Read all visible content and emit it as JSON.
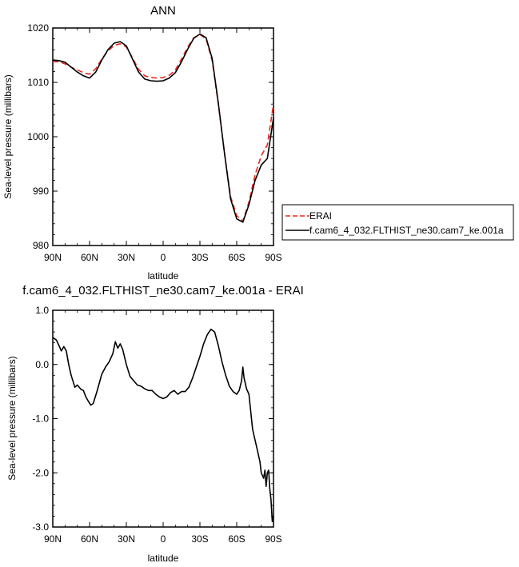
{
  "colors": {
    "model": "#000000",
    "obs": "#e8281e",
    "frame": "#000000"
  },
  "chart_data": [
    {
      "type": "line",
      "title": "ANN",
      "xlabel": "latitude",
      "ylabel": "Sea-level pressure (millibars)",
      "x_ticks": [
        {
          "value": 90,
          "label": "90N"
        },
        {
          "value": 60,
          "label": "60N"
        },
        {
          "value": 30,
          "label": "30N"
        },
        {
          "value": 0,
          "label": "0"
        },
        {
          "value": -30,
          "label": "30S"
        },
        {
          "value": -60,
          "label": "60S"
        },
        {
          "value": -90,
          "label": "90S"
        }
      ],
      "xlim": [
        90,
        -90
      ],
      "y_ticks": [
        {
          "value": 1020,
          "label": "1020"
        },
        {
          "value": 1010,
          "label": "1010"
        },
        {
          "value": 1000,
          "label": "1000"
        },
        {
          "value": 990,
          "label": "990"
        },
        {
          "value": 980,
          "label": "980"
        }
      ],
      "ylim": [
        980,
        1020
      ],
      "legend": {
        "placement": "right",
        "entries": [
          {
            "label": "ERAI",
            "series": 0
          },
          {
            "label": "f.cam6_4_032.FLTHIST_ne30.cam7_ke.001a",
            "series": 1
          }
        ]
      },
      "series": [
        {
          "name": "ERAI",
          "style": "dashed",
          "x": [
            90,
            85,
            80,
            75,
            70,
            65,
            60,
            55,
            50,
            45,
            40,
            35,
            30,
            25,
            20,
            15,
            10,
            5,
            0,
            -5,
            -10,
            -15,
            -20,
            -25,
            -30,
            -35,
            -40,
            -45,
            -50,
            -55,
            -60,
            -65,
            -70,
            -75,
            -80,
            -85,
            -90
          ],
          "values": [
            1013.8,
            1013.8,
            1013.4,
            1012.8,
            1012.3,
            1011.8,
            1011.5,
            1012.5,
            1014.3,
            1015.8,
            1016.8,
            1017.1,
            1016.5,
            1014.5,
            1012.4,
            1011.2,
            1010.9,
            1010.8,
            1010.9,
            1011.3,
            1012.3,
            1014.3,
            1016.5,
            1018.2,
            1018.8,
            1018.0,
            1014.0,
            1006.0,
            997.0,
            989.0,
            985.5,
            984.5,
            988.0,
            993.0,
            996.5,
            998.5,
            1006.0
          ]
        },
        {
          "name": "f.cam6_4_032.FLTHIST_ne30.cam7_ke.001a",
          "style": "solid",
          "x": [
            90,
            85,
            80,
            75,
            70,
            65,
            60,
            55,
            50,
            45,
            40,
            35,
            30,
            25,
            20,
            15,
            10,
            5,
            0,
            -5,
            -10,
            -15,
            -20,
            -25,
            -30,
            -35,
            -40,
            -45,
            -50,
            -55,
            -60,
            -65,
            -70,
            -75,
            -80,
            -85,
            -90
          ],
          "values": [
            1014.1,
            1014.0,
            1013.7,
            1012.8,
            1011.9,
            1011.2,
            1010.8,
            1011.9,
            1014.1,
            1016.0,
            1017.2,
            1017.5,
            1016.7,
            1014.3,
            1011.9,
            1010.6,
            1010.3,
            1010.2,
            1010.3,
            1010.8,
            1011.8,
            1013.8,
            1016.1,
            1018.1,
            1018.9,
            1018.2,
            1014.4,
            1006.2,
            997.0,
            988.6,
            984.9,
            984.3,
            987.5,
            992.0,
            994.8,
            996.0,
            1003.5
          ]
        }
      ]
    },
    {
      "type": "line",
      "title": "f.cam6_4_032.FLTHIST_ne30.cam7_ke.001a - ERAI",
      "xlabel": "latitude",
      "ylabel": "Sea-level pressure (millibars)",
      "x_ticks": [
        {
          "value": 90,
          "label": "90N"
        },
        {
          "value": 60,
          "label": "60N"
        },
        {
          "value": 30,
          "label": "30N"
        },
        {
          "value": 0,
          "label": "0"
        },
        {
          "value": -30,
          "label": "30S"
        },
        {
          "value": -60,
          "label": "60S"
        },
        {
          "value": -90,
          "label": "90S"
        }
      ],
      "xlim": [
        90,
        -90
      ],
      "y_ticks": [
        {
          "value": 1,
          "label": "1.0"
        },
        {
          "value": 0,
          "label": "0.0"
        },
        {
          "value": -1,
          "label": "-1.0"
        },
        {
          "value": -2,
          "label": "-2.0"
        },
        {
          "value": -3,
          "label": "-3.0"
        }
      ],
      "ylim": [
        -3,
        1
      ],
      "series": [
        {
          "style": "solid",
          "x": [
            90,
            87,
            85,
            83,
            81,
            79,
            77,
            75,
            72,
            70,
            67,
            65,
            63,
            61,
            59,
            57,
            54,
            50,
            47,
            44,
            41,
            39,
            37,
            35,
            33,
            30,
            27,
            24,
            21,
            18,
            15,
            12,
            9,
            6,
            3,
            0,
            -3,
            -6,
            -9,
            -12,
            -15,
            -18,
            -21,
            -24,
            -27,
            -30,
            -33,
            -36,
            -39,
            -42,
            -45,
            -48,
            -51,
            -54,
            -57,
            -60,
            -62,
            -64,
            -65,
            -66,
            -68,
            -70,
            -73,
            -75,
            -77,
            -79,
            -80,
            -81,
            -82,
            -83,
            -84,
            -85,
            -86,
            -87,
            -88,
            -89,
            -90
          ],
          "values": [
            0.5,
            0.45,
            0.35,
            0.25,
            0.33,
            0.25,
            0.0,
            -0.2,
            -0.42,
            -0.38,
            -0.46,
            -0.48,
            -0.6,
            -0.68,
            -0.75,
            -0.72,
            -0.5,
            -0.18,
            -0.05,
            0.05,
            0.2,
            0.42,
            0.3,
            0.38,
            0.28,
            0.0,
            -0.22,
            -0.3,
            -0.38,
            -0.4,
            -0.45,
            -0.48,
            -0.48,
            -0.55,
            -0.6,
            -0.63,
            -0.6,
            -0.52,
            -0.48,
            -0.55,
            -0.5,
            -0.5,
            -0.42,
            -0.25,
            -0.05,
            0.15,
            0.38,
            0.55,
            0.65,
            0.6,
            0.35,
            0.05,
            -0.2,
            -0.4,
            -0.5,
            -0.55,
            -0.48,
            -0.3,
            -0.05,
            -0.25,
            -0.45,
            -0.55,
            -1.2,
            -1.4,
            -1.6,
            -1.8,
            -2.0,
            -2.05,
            -2.1,
            -1.95,
            -2.25,
            -2.0,
            -1.95,
            -2.3,
            -2.5,
            -2.9,
            -2.8
          ]
        }
      ]
    }
  ]
}
